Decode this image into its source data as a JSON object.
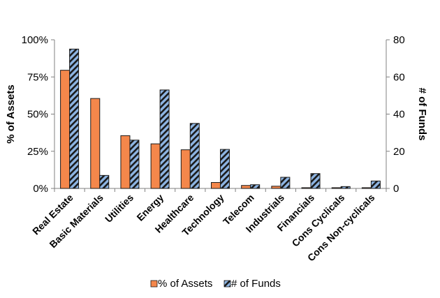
{
  "chart_data": {
    "type": "bar",
    "title": "",
    "categories": [
      "Real Estate",
      "Basic Materials",
      "Utilities",
      "Energy",
      "Healthcare",
      "Technology",
      "Telecom",
      "Industrials",
      "Financials",
      "Cons Cyclicals",
      "Cons Non-cyclicals"
    ],
    "series": [
      {
        "name": "% of Assets",
        "axis": "left",
        "color": "#F4874B",
        "values": [
          79.5,
          60.5,
          35.5,
          30,
          26,
          4,
          2,
          1.5,
          0.5,
          0.5,
          0.5
        ]
      },
      {
        "name": "# of Funds",
        "axis": "right",
        "color": "#8DB4E2",
        "pattern": "diagonal-hatch",
        "values": [
          75,
          7,
          26,
          53,
          35,
          21,
          2,
          6,
          8,
          1,
          4
        ]
      }
    ],
    "ylabel_left": "% of Assets",
    "ylabel_right": "# of Funds",
    "ylim_left": [
      0,
      100
    ],
    "ylim_right": [
      0,
      80
    ],
    "yticks_left": [
      "0%",
      "25%",
      "50%",
      "75%",
      "100%"
    ],
    "yticks_right": [
      "0",
      "20",
      "40",
      "60",
      "80"
    ],
    "legend": "bottom",
    "grid": false
  }
}
